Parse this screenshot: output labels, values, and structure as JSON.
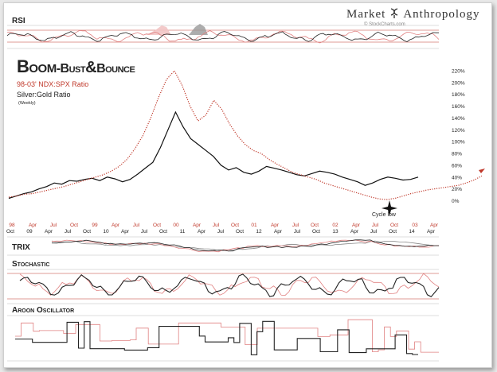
{
  "brand": {
    "left": "Market",
    "right": "Anthropology",
    "credit": "© StockCharts.com"
  },
  "chart_data": [
    {
      "type": "line",
      "panel": "RSI",
      "title": "RSI",
      "grid": true,
      "series": [
        {
          "color": "#222222",
          "trend": "oscillating"
        },
        {
          "color": "#e08080",
          "trend": "oscillating",
          "shaded_peaks": true
        }
      ]
    },
    {
      "type": "line",
      "title": "Boom-Bust&Bounce",
      "title_parts": [
        "Boom",
        "-Bust",
        "&",
        "Bounce"
      ],
      "legend": [
        "98-03' NDX:SPX Ratio",
        "Silver:Gold Ratio",
        "(Weekly)"
      ],
      "legend_position": "top-left",
      "yaxis_side": "right",
      "y_ticks": [
        "220%",
        "200%",
        "180%",
        "160%",
        "140%",
        "120%",
        "100%",
        "80%",
        "60%",
        "40%",
        "20%",
        "0%"
      ],
      "ylim": [
        0,
        220
      ],
      "top_axis_ticks": [
        "98",
        "Apr",
        "Jul",
        "Oct",
        "99",
        "Apr",
        "Jul",
        "Oct",
        "00",
        "Apr",
        "Jul",
        "Oct",
        "01",
        "Apr",
        "Jul",
        "Oct",
        "02",
        "Apr",
        "Jul",
        "Oct",
        "03",
        "Apr"
      ],
      "bottom_axis_ticks": [
        "Oct",
        "09",
        "Apr",
        "Jul",
        "Oct",
        "10",
        "Apr",
        "Jul",
        "Oct",
        "11",
        "Apr",
        "Jul",
        "Oct",
        "12",
        "Apr",
        "Jul",
        "Oct",
        "13",
        "Apr",
        "Jul",
        "Oct",
        "14",
        "Apr"
      ],
      "annotation": "Cycle low",
      "series": [
        {
          "name": "98-03' NDX:SPX Ratio",
          "color": "#c0392b",
          "style": "dotted",
          "values": [
            6,
            8,
            11,
            12,
            15,
            18,
            21,
            24,
            28,
            32,
            36,
            40,
            44,
            50,
            58,
            70,
            88,
            110,
            140,
            175,
            205,
            220,
            195,
            160,
            135,
            145,
            170,
            155,
            130,
            110,
            95,
            85,
            80,
            70,
            62,
            55,
            48,
            44,
            40,
            36,
            30,
            26,
            22,
            18,
            14,
            10,
            6,
            3,
            2,
            4,
            8,
            12,
            15,
            18,
            20,
            22,
            24,
            26,
            30,
            35,
            42
          ]
        },
        {
          "name": "Silver:Gold Ratio",
          "color": "#111111",
          "style": "solid",
          "values": [
            4,
            8,
            12,
            15,
            20,
            24,
            30,
            28,
            34,
            33,
            36,
            38,
            34,
            40,
            37,
            32,
            36,
            45,
            55,
            65,
            90,
            120,
            150,
            125,
            105,
            95,
            85,
            75,
            60,
            52,
            56,
            48,
            45,
            50,
            58,
            55,
            52,
            48,
            44,
            42,
            46,
            50,
            48,
            45,
            40,
            36,
            32,
            26,
            30,
            36,
            40,
            38,
            35,
            36,
            40
          ]
        }
      ]
    },
    {
      "type": "line",
      "panel": "TRIX",
      "title": "TRIX",
      "series": [
        {
          "color": "#222222"
        },
        {
          "color": "#e08080"
        },
        {
          "color": "#888888"
        }
      ]
    },
    {
      "type": "line",
      "panel": "Stochastic",
      "title": "Stochastic",
      "grid": true,
      "series": [
        {
          "color": "#222222"
        },
        {
          "color": "#e08080"
        }
      ]
    },
    {
      "type": "line",
      "panel": "Aroon Oscillator",
      "title": "Aroon Oscillator",
      "series": [
        {
          "color": "#222222",
          "step": true
        },
        {
          "color": "#e08080",
          "step": true
        }
      ]
    }
  ]
}
